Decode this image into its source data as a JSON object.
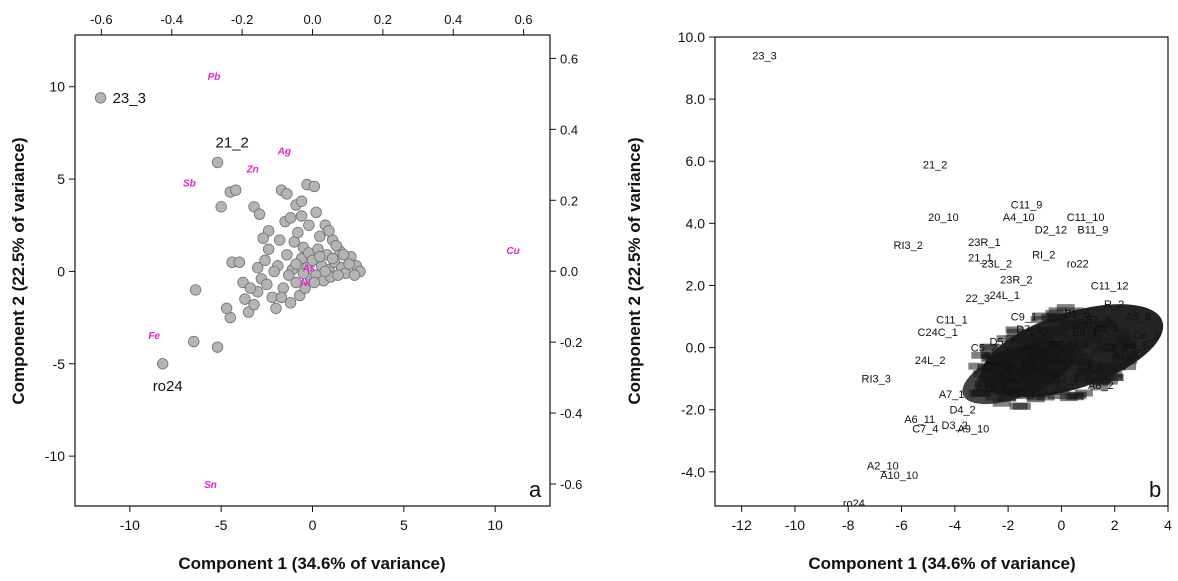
{
  "chart_data": [
    {
      "type": "scatter",
      "panel_label": "a",
      "xlabel": "Component 1 (34.6% of variance)",
      "ylabel": "Component 2 (22.5% of variance)",
      "xlim": [
        -13,
        13
      ],
      "ylim": [
        -12.7,
        12.8
      ],
      "xticks": [
        -10,
        -5,
        0,
        5,
        10
      ],
      "yticks": [
        -10,
        -5,
        0,
        5,
        10
      ],
      "top_xlim": [
        -0.675,
        0.675
      ],
      "top_xticks": [
        -0.6,
        -0.4,
        -0.2,
        0.0,
        0.2,
        0.4,
        0.6
      ],
      "top_xtick_labels": [
        "-0.6",
        "-0.4",
        "-0.2",
        "0.0",
        "0.2",
        "0.4",
        "0.6"
      ],
      "right_ylim": [
        -0.662,
        0.666
      ],
      "right_yticks": [
        -0.6,
        -0.4,
        -0.2,
        0.0,
        0.2,
        0.4,
        0.6
      ],
      "right_ytick_labels": [
        "-0.6",
        "-0.4",
        "-0.2",
        "0.0",
        "0.2",
        "0.4",
        "0.6"
      ],
      "marker_color": "#b4b4b4",
      "marker_edge": "#707070",
      "loading_color": "#e81ed2",
      "scores": [
        [
          -11.6,
          9.4
        ],
        [
          -8.2,
          -5.0
        ],
        [
          -5.2,
          5.9
        ],
        [
          -5.0,
          3.5
        ],
        [
          -4.5,
          4.3
        ],
        [
          -4.2,
          4.4
        ],
        [
          -6.4,
          -1.0
        ],
        [
          -6.5,
          -3.8
        ],
        [
          -5.2,
          -4.1
        ],
        [
          -4.5,
          -2.5
        ],
        [
          -4.7,
          -2.0
        ],
        [
          -4.4,
          0.5
        ],
        [
          -4.0,
          0.5
        ],
        [
          -3.8,
          -0.6
        ],
        [
          -3.2,
          3.5
        ],
        [
          -2.9,
          3.1
        ],
        [
          -2.4,
          2.2
        ],
        [
          -1.7,
          4.4
        ],
        [
          -1.4,
          4.2
        ],
        [
          -0.9,
          3.6
        ],
        [
          -0.6,
          3.0
        ],
        [
          -0.3,
          4.7
        ],
        [
          0.1,
          4.6
        ],
        [
          -0.2,
          2.5
        ],
        [
          0.4,
          1.9
        ],
        [
          0.7,
          2.5
        ],
        [
          1.1,
          1.7
        ],
        [
          1.5,
          1.1
        ],
        [
          2.1,
          0.8
        ],
        [
          2.4,
          0.3
        ],
        [
          2.6,
          0.0
        ],
        [
          -3.7,
          -1.5
        ],
        [
          -3.5,
          -2.2
        ],
        [
          -3.2,
          -1.8
        ],
        [
          -3.0,
          -1.1
        ],
        [
          -2.8,
          -0.4
        ],
        [
          -2.6,
          0.6
        ],
        [
          -2.4,
          1.2
        ],
        [
          -2.2,
          -1.4
        ],
        [
          -2.0,
          -2.0
        ],
        [
          -1.9,
          0.3
        ],
        [
          -1.8,
          1.7
        ],
        [
          -1.6,
          -0.9
        ],
        [
          -1.5,
          2.7
        ],
        [
          -1.4,
          0.9
        ],
        [
          -1.2,
          -1.7
        ],
        [
          -1.1,
          0.1
        ],
        [
          -1.0,
          1.6
        ],
        [
          -0.9,
          -0.6
        ],
        [
          -0.8,
          2.1
        ],
        [
          -0.7,
          -1.3
        ],
        [
          -0.6,
          0.7
        ],
        [
          -0.5,
          1.3
        ],
        [
          -0.4,
          -0.9
        ],
        [
          -0.3,
          0.2
        ],
        [
          -0.2,
          1.0
        ],
        [
          -0.1,
          -0.4
        ],
        [
          0.0,
          0.6
        ],
        [
          0.2,
          -0.2
        ],
        [
          0.3,
          1.2
        ],
        [
          0.5,
          0.3
        ],
        [
          0.6,
          -0.5
        ],
        [
          0.8,
          0.9
        ],
        [
          0.9,
          0.1
        ],
        [
          1.0,
          -0.3
        ],
        [
          1.2,
          0.5
        ],
        [
          1.3,
          1.4
        ],
        [
          1.6,
          0.2
        ],
        [
          1.8,
          -0.1
        ],
        [
          2.0,
          0.4
        ],
        [
          -2.5,
          -0.7
        ],
        [
          -2.1,
          0.0
        ],
        [
          -1.3,
          -0.2
        ],
        [
          -0.9,
          0.4
        ],
        [
          -0.5,
          -0.1
        ],
        [
          0.1,
          -0.6
        ],
        [
          0.4,
          0.8
        ],
        [
          0.7,
          0.0
        ],
        [
          1.1,
          0.7
        ],
        [
          1.4,
          -0.2
        ],
        [
          -3.4,
          -0.9
        ],
        [
          -3.0,
          0.2
        ],
        [
          -2.7,
          1.8
        ],
        [
          -1.7,
          -1.4
        ],
        [
          -1.2,
          2.9
        ],
        [
          -0.6,
          3.8
        ],
        [
          0.2,
          3.2
        ],
        [
          0.9,
          2.2
        ],
        [
          1.7,
          0.9
        ],
        [
          2.3,
          -0.2
        ]
      ],
      "score_labels": [
        {
          "text": "23_3",
          "x": -11.6,
          "y": 9.4
        },
        {
          "text": "21_2",
          "x": -5.2,
          "y": 5.9
        },
        {
          "text": "ro24",
          "x": -8.2,
          "y": -5.0
        }
      ],
      "loadings": [
        {
          "text": "Pb",
          "x": -0.28,
          "y": 0.55
        },
        {
          "text": "Ag",
          "x": -0.08,
          "y": 0.34
        },
        {
          "text": "Zn",
          "x": -0.17,
          "y": 0.29
        },
        {
          "text": "Sb",
          "x": -0.35,
          "y": 0.25
        },
        {
          "text": "Cu",
          "x": 0.57,
          "y": 0.06
        },
        {
          "text": "As",
          "x": -0.01,
          "y": 0.01
        },
        {
          "text": "Ni",
          "x": -0.02,
          "y": -0.03
        },
        {
          "text": "Fe",
          "x": -0.45,
          "y": -0.18
        },
        {
          "text": "Sn",
          "x": -0.29,
          "y": -0.6
        }
      ]
    },
    {
      "type": "scatter",
      "panel_label": "b",
      "xlabel": "Component 1 (34.6% of variance)",
      "ylabel": "Component 2 (22.5% of variance)",
      "xlim": [
        -13,
        4
      ],
      "ylim": [
        -5.1,
        10
      ],
      "xticks": [
        -12,
        -10,
        -8,
        -6,
        -4,
        -2,
        0,
        2,
        4
      ],
      "yticks": [
        -4,
        -2,
        0,
        2,
        4,
        6,
        8,
        10
      ],
      "ytick_labels": [
        "-4.0",
        "-2.0",
        "0.0",
        "2.0",
        "4.0",
        "6.0",
        "8.0",
        "10.0"
      ],
      "labels": [
        {
          "text": "23_3",
          "x": -11.6,
          "y": 9.4
        },
        {
          "text": "21_2",
          "x": -5.2,
          "y": 5.9
        },
        {
          "text": "C11_9",
          "x": -1.9,
          "y": 4.6
        },
        {
          "text": "C11_10",
          "x": 0.2,
          "y": 4.2
        },
        {
          "text": "A4_10",
          "x": -2.2,
          "y": 4.2
        },
        {
          "text": "20_10",
          "x": -5.0,
          "y": 4.2
        },
        {
          "text": "D2_12",
          "x": -1.0,
          "y": 3.8
        },
        {
          "text": "B11_9",
          "x": 0.6,
          "y": 3.8
        },
        {
          "text": "RI3_2",
          "x": -6.3,
          "y": 3.3
        },
        {
          "text": "23R_1",
          "x": -3.5,
          "y": 3.4
        },
        {
          "text": "21_1",
          "x": -3.5,
          "y": 2.9
        },
        {
          "text": "23L_2",
          "x": -3.0,
          "y": 2.7
        },
        {
          "text": "RI_2",
          "x": -1.1,
          "y": 3.0
        },
        {
          "text": "ro22",
          "x": 0.2,
          "y": 2.7
        },
        {
          "text": "23R_2",
          "x": -2.3,
          "y": 2.2
        },
        {
          "text": "C11_12",
          "x": 1.1,
          "y": 2.0
        },
        {
          "text": "24L_1",
          "x": -2.7,
          "y": 1.7
        },
        {
          "text": "22_3",
          "x": -3.6,
          "y": 1.6
        },
        {
          "text": "C11_1",
          "x": -4.7,
          "y": 0.9
        },
        {
          "text": "C24C_1",
          "x": -5.4,
          "y": 0.5
        },
        {
          "text": "24L_2",
          "x": -5.5,
          "y": -0.4
        },
        {
          "text": "RI3_3",
          "x": -7.5,
          "y": -1.0
        },
        {
          "text": "A7_1",
          "x": -4.6,
          "y": -1.5
        },
        {
          "text": "D4_2",
          "x": -4.2,
          "y": -2.0
        },
        {
          "text": "A6_11",
          "x": -5.9,
          "y": -2.3
        },
        {
          "text": "C7_4",
          "x": -5.6,
          "y": -2.6
        },
        {
          "text": "D3_2",
          "x": -4.5,
          "y": -2.5
        },
        {
          "text": "A9_10",
          "x": -3.9,
          "y": -2.6
        },
        {
          "text": "A2_10",
          "x": -7.3,
          "y": -3.8
        },
        {
          "text": "A10_10",
          "x": -6.8,
          "y": -4.1
        },
        {
          "text": "ro24",
          "x": -8.2,
          "y": -5.0
        },
        {
          "text": "B3_8",
          "x": 2.3,
          "y": 0.1
        },
        {
          "text": "A1_3",
          "x": 1.9,
          "y": -0.2
        },
        {
          "text": "R_2",
          "x": 1.6,
          "y": 1.4
        },
        {
          "text": "A5_8",
          "x": 2.4,
          "y": 1.0
        },
        {
          "text": "A3_4",
          "x": 1.2,
          "y": 0.6
        },
        {
          "text": "B1_6",
          "x": 0.1,
          "y": 1.1
        },
        {
          "text": "C6_7",
          "x": -0.8,
          "y": 0.3
        },
        {
          "text": "D1_5",
          "x": -1.5,
          "y": -0.5
        },
        {
          "text": "B2_3",
          "x": -0.3,
          "y": -1.0
        },
        {
          "text": "C3_6",
          "x": 0.6,
          "y": -0.6
        },
        {
          "text": "A8_2",
          "x": 1.0,
          "y": -1.2
        },
        {
          "text": "B5_4",
          "x": -2.3,
          "y": -0.9
        },
        {
          "text": "D5_7",
          "x": -2.7,
          "y": 0.2
        },
        {
          "text": "C9_1",
          "x": -1.9,
          "y": 1.0
        },
        {
          "text": "A11_5",
          "x": -3.2,
          "y": -1.3
        },
        {
          "text": "B8_2",
          "x": 0.4,
          "y": 0.5
        },
        {
          "text": "C2_9",
          "x": 1.5,
          "y": 0.0
        },
        {
          "text": "D6_3",
          "x": 2.7,
          "y": 0.4
        },
        {
          "text": "B6_11",
          "x": -0.5,
          "y": 0.1
        },
        {
          "text": "A12_4",
          "x": -1.2,
          "y": -0.2
        },
        {
          "text": "C8_5",
          "x": -2.9,
          "y": -0.6
        },
        {
          "text": "B7_8",
          "x": 0.9,
          "y": 0.9
        },
        {
          "text": "D7_1",
          "x": -1.7,
          "y": 0.6
        },
        {
          "text": "C5_2",
          "x": -3.4,
          "y": 0.0
        }
      ]
    }
  ]
}
